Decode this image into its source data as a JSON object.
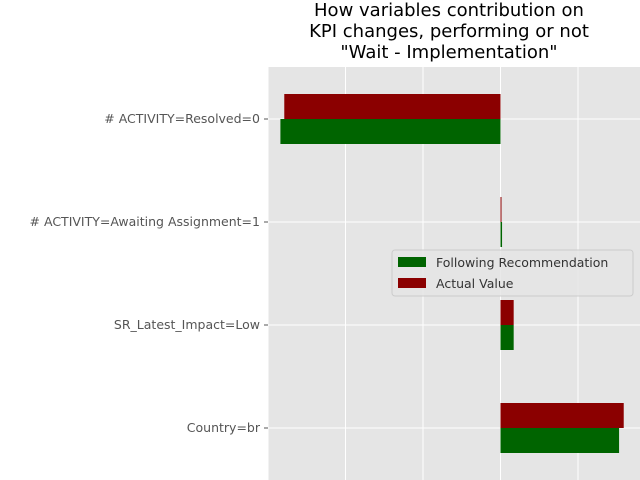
{
  "chart_data": {
    "type": "bar",
    "orientation": "horizontal",
    "title_lines": [
      "How variables contribution on",
      "KPI changes, performing or not",
      "\"Wait - Implementation\""
    ],
    "categories": [
      "# ACTIVITY=Resolved=0",
      "# ACTIVITY=Awaiting Assignment=1",
      "SR_Latest_Impact=Low",
      "Country=br"
    ],
    "series": [
      {
        "name": "Following Recommendation",
        "color": "#006400",
        "values": [
          -0.284,
          0.002,
          0.017,
          0.153
        ]
      },
      {
        "name": "Actual Value",
        "color": "#8b0000",
        "values": [
          -0.279,
          0.001,
          0.017,
          0.159
        ]
      }
    ],
    "xlim": [
      -0.3,
      0.18
    ],
    "x_gridlines": [
      -0.3,
      -0.2,
      -0.1,
      0.0,
      0.1
    ],
    "xtick_labels_visible": false,
    "grid": true,
    "background": "#e5e5e5",
    "legend_position": "center-right"
  }
}
